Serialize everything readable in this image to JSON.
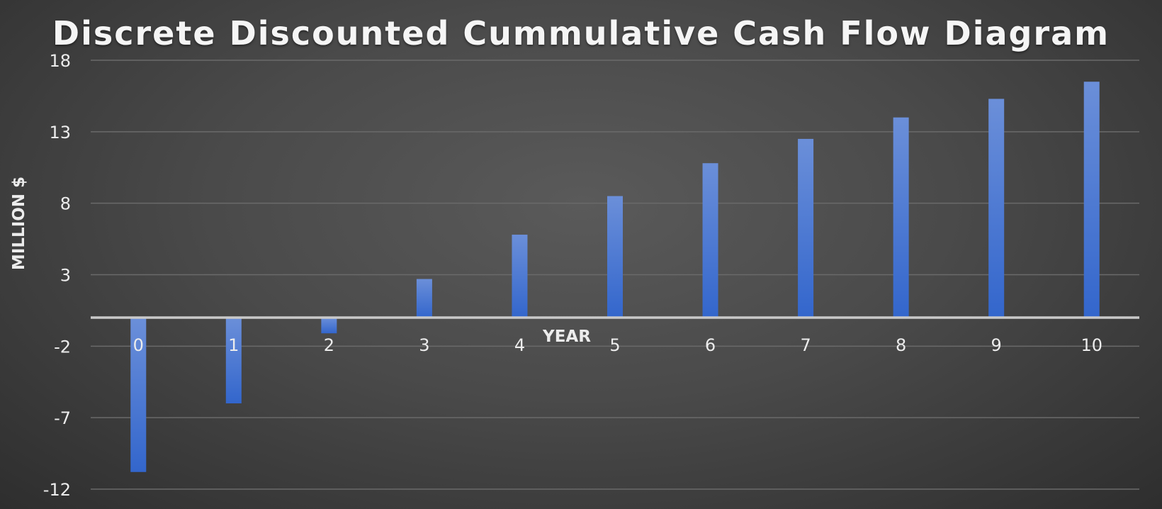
{
  "chart_data": {
    "type": "bar",
    "title": "Discrete Discounted Cummulative Cash Flow Diagram",
    "xlabel": "YEAR",
    "ylabel": "MILLION $",
    "categories": [
      "0",
      "1",
      "2",
      "3",
      "4",
      "5",
      "6",
      "7",
      "8",
      "9",
      "10"
    ],
    "values": [
      -10.8,
      -6.0,
      -1.1,
      2.7,
      5.8,
      8.5,
      10.8,
      12.5,
      14.0,
      15.3,
      16.5
    ],
    "ylim": [
      -12,
      18
    ],
    "yticks": [
      18,
      13,
      8,
      3,
      -2,
      -7,
      -12
    ],
    "grid": true,
    "legend": "none",
    "colors": {
      "bar_top": "#6b8fd9",
      "bar_bottom": "#3366cc",
      "gridline": "#6a6a6a",
      "zero_line": "#c9c9c9",
      "text": "#ececec"
    }
  }
}
